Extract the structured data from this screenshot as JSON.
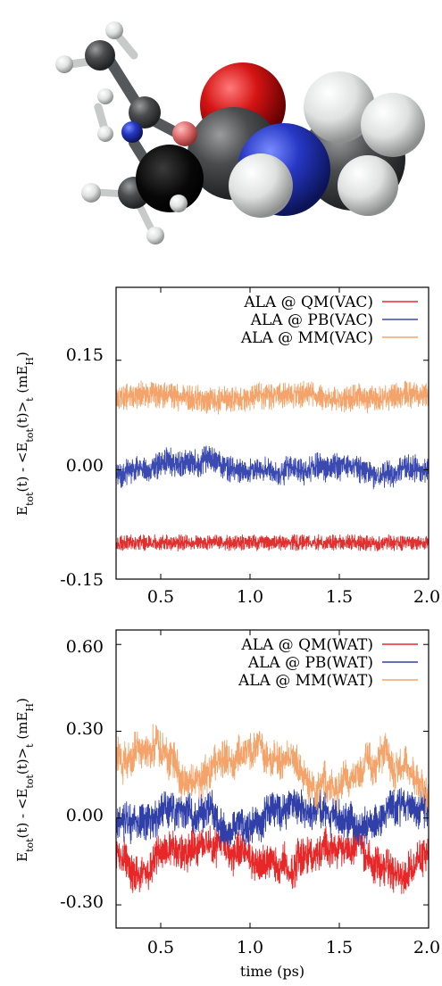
{
  "illustration": {
    "type": "molecule",
    "colors": {
      "carbon": "#3c3e40",
      "hydrogen": "#e8eaea",
      "oxygen": "#d81818",
      "nitrogen": "#2a3cc8",
      "backbone": "#050505",
      "highlight": "#e87878"
    }
  },
  "chart_data": [
    {
      "type": "line",
      "xlim": [
        0.25,
        2.0
      ],
      "ylim": [
        -0.15,
        0.25
      ],
      "x_ticks": [
        0.5,
        1.0,
        1.5,
        2.0
      ],
      "x_tick_labels": [
        "0.5",
        "1.0",
        "1.5",
        "2.0"
      ],
      "y_ticks": [
        -0.15,
        0.0,
        0.15
      ],
      "y_tick_labels": [
        "-0.15",
        "0.00",
        "0.15"
      ],
      "ylabel": "E_tot(t) - <E_tot(t)>_t (mE_H)",
      "ylabel_parts": [
        "E",
        "tot",
        "(t) - <E",
        "tot",
        "(t)>",
        "t",
        " (mE",
        "H",
        ")"
      ],
      "xlabel": "",
      "legend_position": "top-right",
      "series": [
        {
          "name": "ALA @ QM(VAC)",
          "color": "#e03030",
          "mean": -0.1,
          "noise_amplitude": 0.012,
          "drift_amplitude": 0.0
        },
        {
          "name": "ALA @ PB(VAC)",
          "color": "#3a4ab0",
          "mean": 0.0,
          "noise_amplitude": 0.02,
          "drift_amplitude": 0.01
        },
        {
          "name": "ALA @ MM(VAC)",
          "color": "#f4a46a",
          "mean": 0.1,
          "noise_amplitude": 0.02,
          "drift_amplitude": 0.005
        }
      ]
    },
    {
      "type": "line",
      "xlim": [
        0.25,
        2.0
      ],
      "ylim": [
        -0.38,
        0.65
      ],
      "x_ticks": [
        0.5,
        1.0,
        1.5,
        2.0
      ],
      "x_tick_labels": [
        "0.5",
        "1.0",
        "1.5",
        "2.0"
      ],
      "y_ticks": [
        -0.3,
        0.0,
        0.3,
        0.6
      ],
      "y_tick_labels": [
        "-0.30",
        "0.00",
        "0.30",
        "0.60"
      ],
      "ylabel": "E_tot(t) - <E_tot(t)>_t (mE_H)",
      "ylabel_parts": [
        "E",
        "tot",
        "(t) - <E",
        "tot",
        "(t)>",
        "t",
        " (mE",
        "H",
        ")"
      ],
      "xlabel": "time (ps)",
      "legend_position": "top-right",
      "series": [
        {
          "name": "ALA @ QM(WAT)",
          "color": "#e82828",
          "mean": -0.12,
          "noise_amplitude": 0.07,
          "drift_amplitude": 0.06
        },
        {
          "name": "ALA @ PB(WAT)",
          "color": "#3040a8",
          "mean": 0.0,
          "noise_amplitude": 0.07,
          "drift_amplitude": 0.06
        },
        {
          "name": "ALA @ MM(WAT)",
          "color": "#f4a46a",
          "mean": 0.19,
          "noise_amplitude": 0.07,
          "drift_amplitude": 0.08
        }
      ]
    }
  ]
}
